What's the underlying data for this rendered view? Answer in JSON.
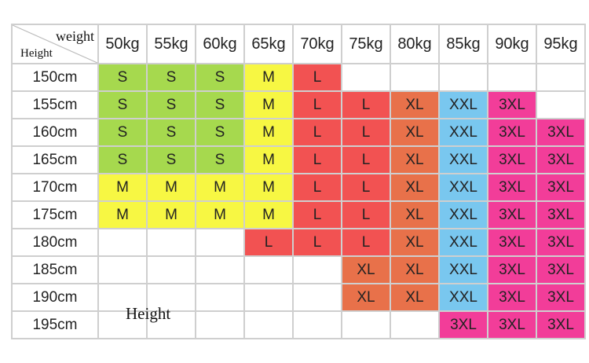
{
  "corner": {
    "weight_label": "weight",
    "height_label": "Height"
  },
  "weights": [
    "50kg",
    "55kg",
    "60kg",
    "65kg",
    "70kg",
    "75kg",
    "80kg",
    "85kg",
    "90kg",
    "95kg"
  ],
  "heights": [
    "150cm",
    "155cm",
    "160cm",
    "165cm",
    "170cm",
    "175cm",
    "180cm",
    "185cm",
    "190cm",
    "195cm"
  ],
  "sizes": [
    [
      "S",
      "S",
      "S",
      "M",
      "L",
      "",
      "",
      "",
      "",
      ""
    ],
    [
      "S",
      "S",
      "S",
      "M",
      "L",
      "L",
      "XL",
      "XXL",
      "3XL",
      ""
    ],
    [
      "S",
      "S",
      "S",
      "M",
      "L",
      "L",
      "XL",
      "XXL",
      "3XL",
      "3XL"
    ],
    [
      "S",
      "S",
      "S",
      "M",
      "L",
      "L",
      "XL",
      "XXL",
      "3XL",
      "3XL"
    ],
    [
      "M",
      "M",
      "M",
      "M",
      "L",
      "L",
      "XL",
      "XXL",
      "3XL",
      "3XL"
    ],
    [
      "M",
      "M",
      "M",
      "M",
      "L",
      "L",
      "XL",
      "XXL",
      "3XL",
      "3XL"
    ],
    [
      "",
      "",
      "",
      "L",
      "L",
      "L",
      "XL",
      "XXL",
      "3XL",
      "3XL"
    ],
    [
      "",
      "",
      "",
      "",
      "",
      "XL",
      "XL",
      "XXL",
      "3XL",
      "3XL"
    ],
    [
      "",
      "",
      "",
      "",
      "",
      "XL",
      "XL",
      "XXL",
      "3XL",
      "3XL"
    ],
    [
      "",
      "",
      "",
      "",
      "",
      "",
      "",
      "3XL",
      "3XL",
      "3XL"
    ]
  ],
  "size_colors": {
    "S": "#a6d94e",
    "M": "#f7f743",
    "L": "#f25252",
    "XL": "#e8714a",
    "XXL": "#79c7ef",
    "3XL": "#f23d99"
  },
  "overlay_label": "Height"
}
